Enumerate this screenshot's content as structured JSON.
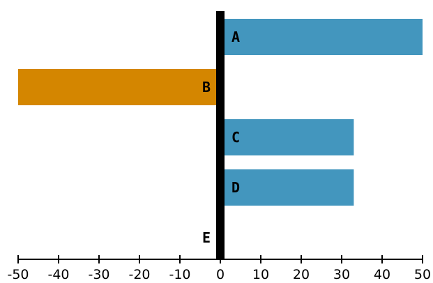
{
  "chart_data": {
    "type": "bar",
    "orientation": "horizontal",
    "categories": [
      "A",
      "B",
      "C",
      "D",
      "E"
    ],
    "values": [
      50,
      -50,
      33,
      33,
      -1
    ],
    "xlim": [
      -50,
      50
    ],
    "xticks": [
      -50,
      -40,
      -30,
      -20,
      -10,
      0,
      10,
      20,
      30,
      40,
      50
    ],
    "xtick_labels": [
      "-50",
      "-40",
      "-30",
      "-20",
      "-10",
      "0",
      "10",
      "20",
      "30",
      "40",
      "50"
    ],
    "title": "",
    "xlabel": "",
    "ylabel": "",
    "grid": false,
    "colors": {
      "positive": "#4396be",
      "negative": "#d48600",
      "zero_line": "#000000",
      "axis": "#000000"
    }
  }
}
